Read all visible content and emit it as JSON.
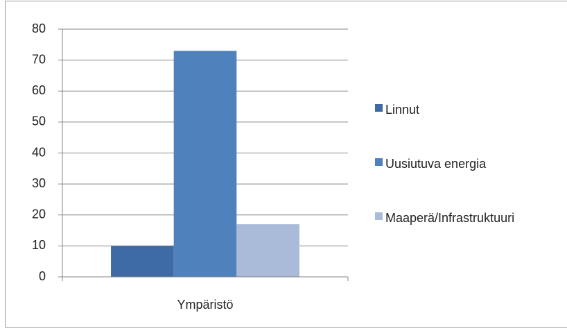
{
  "chart_data": {
    "type": "bar",
    "categories": [
      "Ympäristö"
    ],
    "series": [
      {
        "name": "Linnut",
        "color": "#3e6aa5",
        "values": [
          10
        ]
      },
      {
        "name": "Uusiutuva energia",
        "color": "#4f81bd",
        "values": [
          73
        ]
      },
      {
        "name": "Maaperä/Infrastruktuuri",
        "color": "#a9bbd8",
        "values": [
          17
        ]
      }
    ],
    "ylim": [
      0,
      80
    ],
    "yticks": [
      0,
      10,
      20,
      30,
      40,
      50,
      60,
      70,
      80
    ],
    "grid": true,
    "legend": "right"
  }
}
